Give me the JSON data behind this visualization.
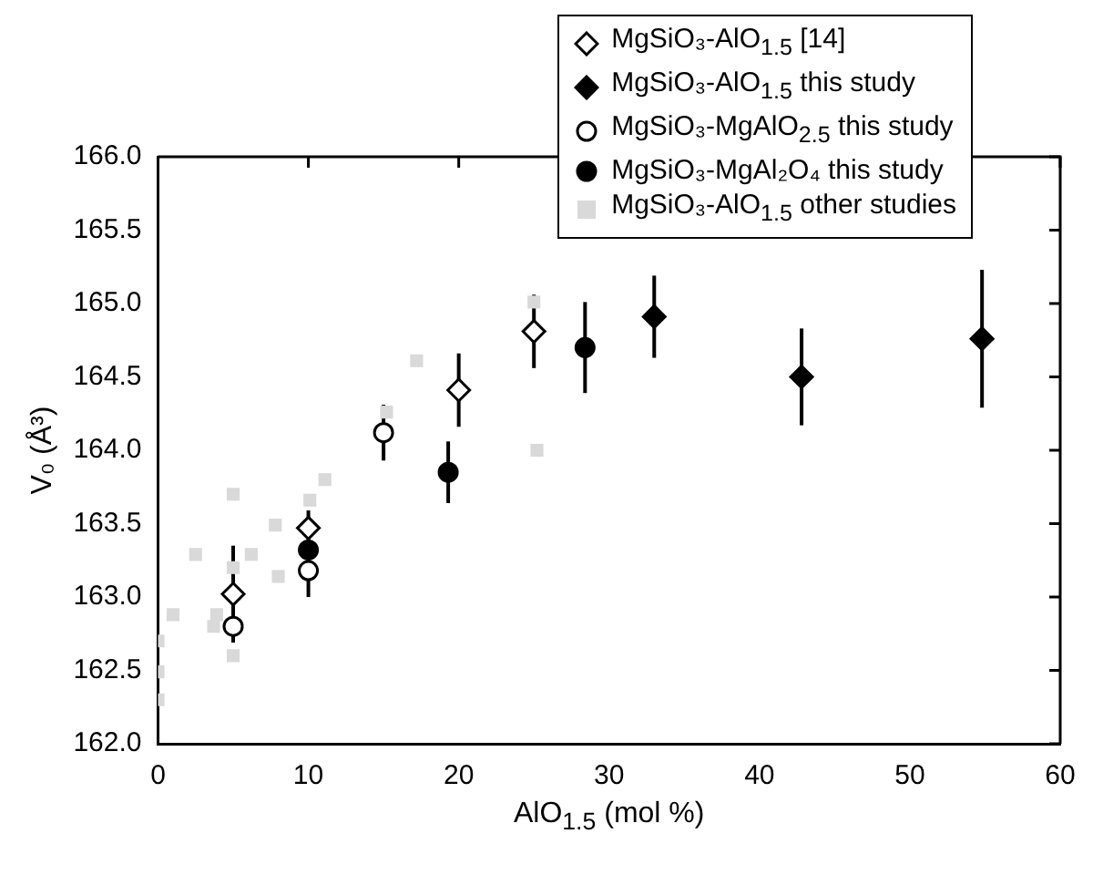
{
  "chart_data": {
    "type": "scatter",
    "xlabel": "AlO$_{1.5}$ (mol %)",
    "ylabel": "V₀ (Å³)",
    "xlim": [
      0,
      60
    ],
    "xticks": [
      0,
      10,
      20,
      30,
      40,
      50,
      60
    ],
    "ylim": [
      162,
      166
    ],
    "yticks": [
      {
        "value": 162,
        "label": "162.0"
      },
      {
        "value": 162.5,
        "label": "162.5"
      },
      {
        "value": 163,
        "label": "163.0"
      },
      {
        "value": 163.5,
        "label": "163.5"
      },
      {
        "value": 164,
        "label": "164.0"
      },
      {
        "value": 164.5,
        "label": "164.5"
      },
      {
        "value": 165,
        "label": "165.0"
      },
      {
        "value": 165.5,
        "label": "165.5"
      },
      {
        "value": 166,
        "label": "166.0"
      }
    ],
    "grid": false,
    "legend": "top right",
    "series": [
      {
        "name": "MgSiO₃-AlO$_{1.5}$ other studies",
        "color": "#d9d9d9",
        "marker": "square",
        "x": [
          0,
          0,
          0,
          1,
          2.5,
          3.7,
          3.9,
          5,
          5,
          5,
          6.2,
          7.8,
          8,
          10.1,
          11.1,
          15.2,
          17.2,
          25.2,
          25
        ],
        "values": [
          162.7,
          162.49,
          162.3,
          162.88,
          163.29,
          162.8,
          162.88,
          163.7,
          163.2,
          162.6,
          163.29,
          163.49,
          163.14,
          163.66,
          163.8,
          164.26,
          164.61,
          164,
          165.01
        ]
      },
      {
        "name": "MgSiO₃-AlO$_{1.5}$ [14]",
        "color": "#ffffff",
        "marker": "diamond",
        "x": [
          5,
          10,
          20,
          25
        ],
        "values": [
          163.02,
          163.47,
          164.41,
          164.81
        ],
        "errors": [
          0.33,
          0.12,
          0.25,
          0.25
        ]
      },
      {
        "name": "MgSiO₃-AlO$_{1.5}$ this study",
        "color": "#000000",
        "marker": "diamond",
        "x": [
          33,
          42.8,
          54.8
        ],
        "values": [
          164.91,
          164.5,
          164.76
        ],
        "errors": [
          0.28,
          0.33,
          0.47
        ]
      },
      {
        "name": "MgSiO₃-MgAlO$_{2.5}$ this study",
        "color": "#ffffff",
        "marker": "circle",
        "x": [
          5,
          10,
          15
        ],
        "values": [
          162.8,
          163.18,
          164.12
        ],
        "errors": [
          0.11,
          0.18,
          0.19
        ]
      },
      {
        "name": "MgSiO₃-MgAl₂O₄ this study",
        "color": "#000000",
        "marker": "circle",
        "x": [
          10,
          19.3,
          28.4
        ],
        "values": [
          163.32,
          163.85,
          164.7
        ],
        "errors": [
          null,
          0.21,
          0.31
        ]
      }
    ]
  }
}
